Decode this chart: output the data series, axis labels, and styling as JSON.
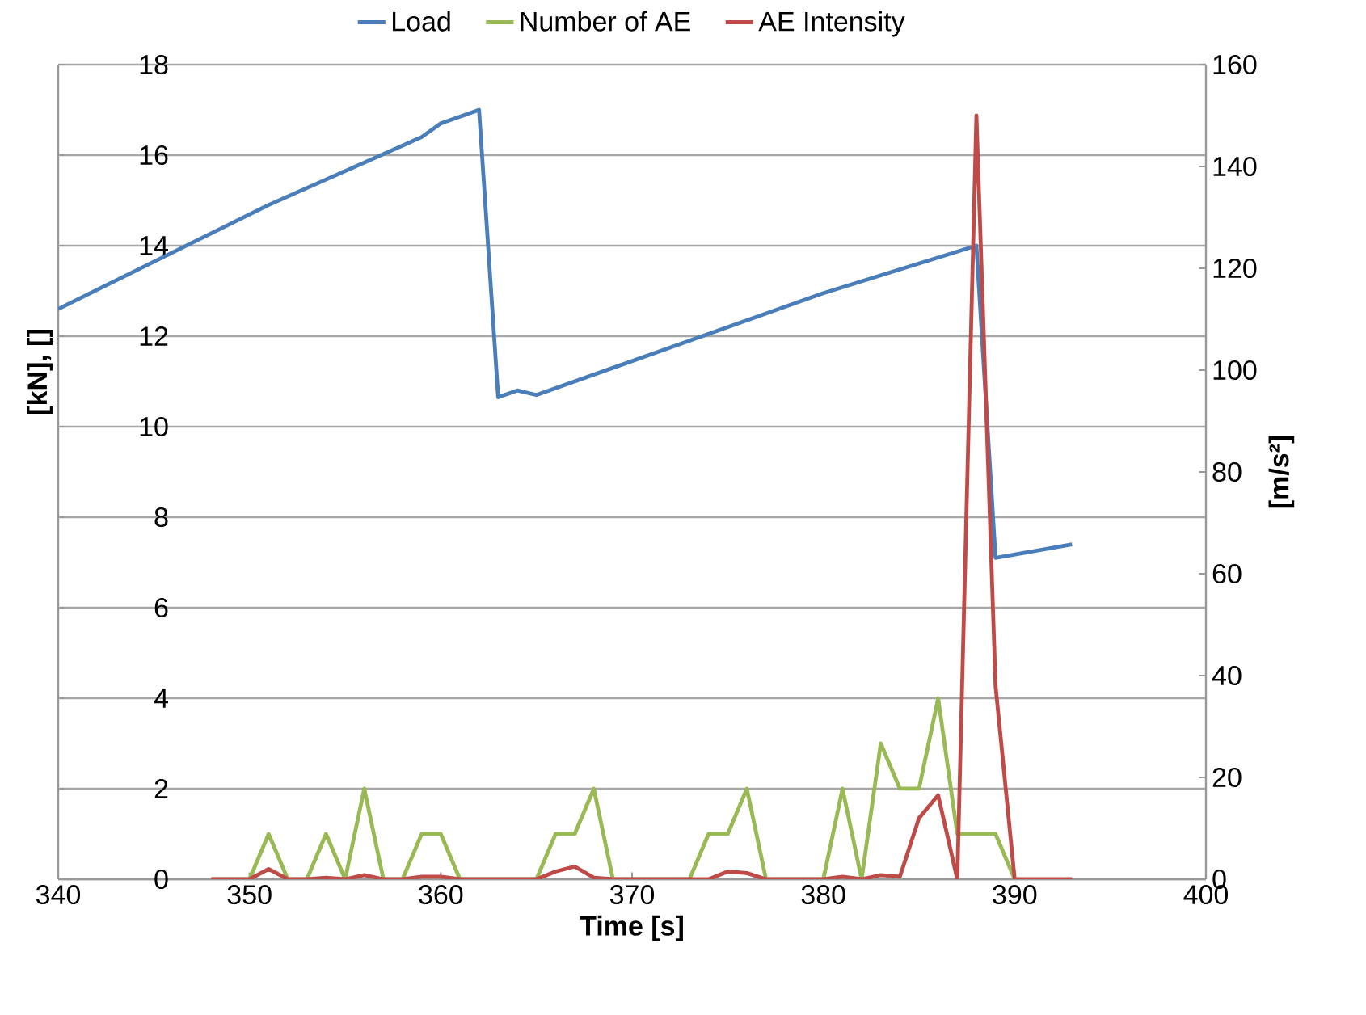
{
  "chart_data": {
    "type": "line",
    "xlabel": "Time [s]",
    "ylabel": "[kN], []",
    "y2label": "[m/s²]",
    "xlim": [
      340,
      400
    ],
    "xticks": [
      340,
      350,
      360,
      370,
      380,
      390,
      400
    ],
    "ylim": [
      0,
      18
    ],
    "yticks": [
      0,
      2,
      4,
      6,
      8,
      10,
      12,
      14,
      16,
      18
    ],
    "y2lim": [
      0,
      160
    ],
    "y2ticks": [
      0,
      20,
      40,
      60,
      80,
      100,
      120,
      140,
      160
    ],
    "grid": "y",
    "legend": "top",
    "marker": "none",
    "line_style": "solid",
    "series": [
      {
        "name": "Load",
        "color": "#4a7ebb",
        "x": [
          340,
          351,
          359,
          360,
          361,
          362,
          363,
          364,
          365,
          372,
          380,
          388,
          389,
          393
        ],
        "values": [
          12.6,
          14.9,
          16.4,
          16.7,
          16.85,
          17.0,
          10.65,
          10.8,
          10.7,
          11.75,
          12.95,
          14.0,
          7.1,
          7.4
        ]
      },
      {
        "name": "Number of AE",
        "color": "#98b954",
        "x": [
          348,
          349,
          350,
          351,
          352,
          353,
          354,
          355,
          356,
          357,
          358,
          359,
          360,
          361,
          362,
          363,
          364,
          365,
          366,
          367,
          368,
          369,
          370,
          371,
          372,
          373,
          374,
          375,
          376,
          377,
          378,
          379,
          380,
          381,
          382,
          383,
          384,
          385,
          386,
          387,
          388,
          389,
          390
        ],
        "values": [
          0,
          0,
          0,
          1,
          0,
          0,
          1,
          0,
          2,
          0,
          0,
          1,
          1,
          0,
          0,
          0,
          0,
          0,
          1,
          1,
          2,
          0,
          0,
          0,
          0,
          0,
          1,
          1,
          2,
          0,
          0,
          0,
          0,
          2,
          0,
          3,
          2,
          2,
          4,
          1,
          1,
          1,
          0
        ]
      },
      {
        "name": "AE Intensity",
        "color": "#be4b48",
        "axis": "y2",
        "x": [
          348,
          349,
          350,
          351,
          352,
          353,
          354,
          355,
          356,
          357,
          358,
          359,
          360,
          361,
          362,
          363,
          364,
          365,
          366,
          367,
          368,
          369,
          370,
          371,
          372,
          373,
          374,
          375,
          376,
          377,
          378,
          379,
          380,
          381,
          382,
          383,
          384,
          385,
          386,
          387,
          388,
          389,
          390,
          391,
          392,
          393
        ],
        "values": [
          0,
          0,
          0,
          2,
          0,
          0,
          0.3,
          0,
          0.8,
          0,
          0,
          0.5,
          0.5,
          0,
          0,
          0,
          0,
          0,
          1.5,
          2.5,
          0.3,
          0,
          0,
          0,
          0,
          0,
          0,
          1.5,
          1.2,
          0,
          0,
          0,
          0,
          0.5,
          0,
          0.8,
          0.5,
          12,
          16.5,
          0,
          150,
          38,
          0,
          0,
          0,
          0
        ]
      }
    ]
  }
}
